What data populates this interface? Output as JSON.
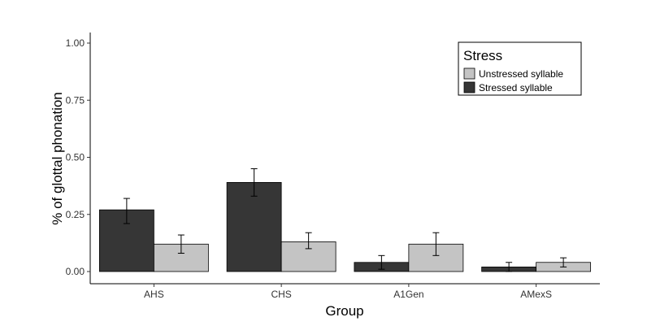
{
  "chart_data": {
    "type": "bar",
    "title": "",
    "xlabel": "Group",
    "ylabel": "% of glottal phonation",
    "categories": [
      "AHS",
      "CHS",
      "A1Gen",
      "AMexS"
    ],
    "ylim": [
      0,
      1
    ],
    "yticks": [
      "0.00",
      "0.25",
      "0.50",
      "0.75",
      "1.00"
    ],
    "grid": false,
    "legend": {
      "title": "Stress",
      "placement": "top-right",
      "entries": [
        {
          "label": "Unstressed syllable",
          "color": "#c4c4c4"
        },
        {
          "label": "Stressed syllable",
          "color": "#363636"
        }
      ]
    },
    "series": [
      {
        "name": "Stressed syllable",
        "color": "#363636",
        "values": [
          0.27,
          0.39,
          0.04,
          0.02
        ],
        "error_low": [
          0.21,
          0.33,
          0.01,
          0.0
        ],
        "error_high": [
          0.32,
          0.45,
          0.07,
          0.04
        ]
      },
      {
        "name": "Unstressed syllable",
        "color": "#c4c4c4",
        "values": [
          0.12,
          0.13,
          0.12,
          0.04
        ],
        "error_low": [
          0.08,
          0.1,
          0.07,
          0.02
        ],
        "error_high": [
          0.16,
          0.17,
          0.17,
          0.06
        ]
      }
    ]
  }
}
